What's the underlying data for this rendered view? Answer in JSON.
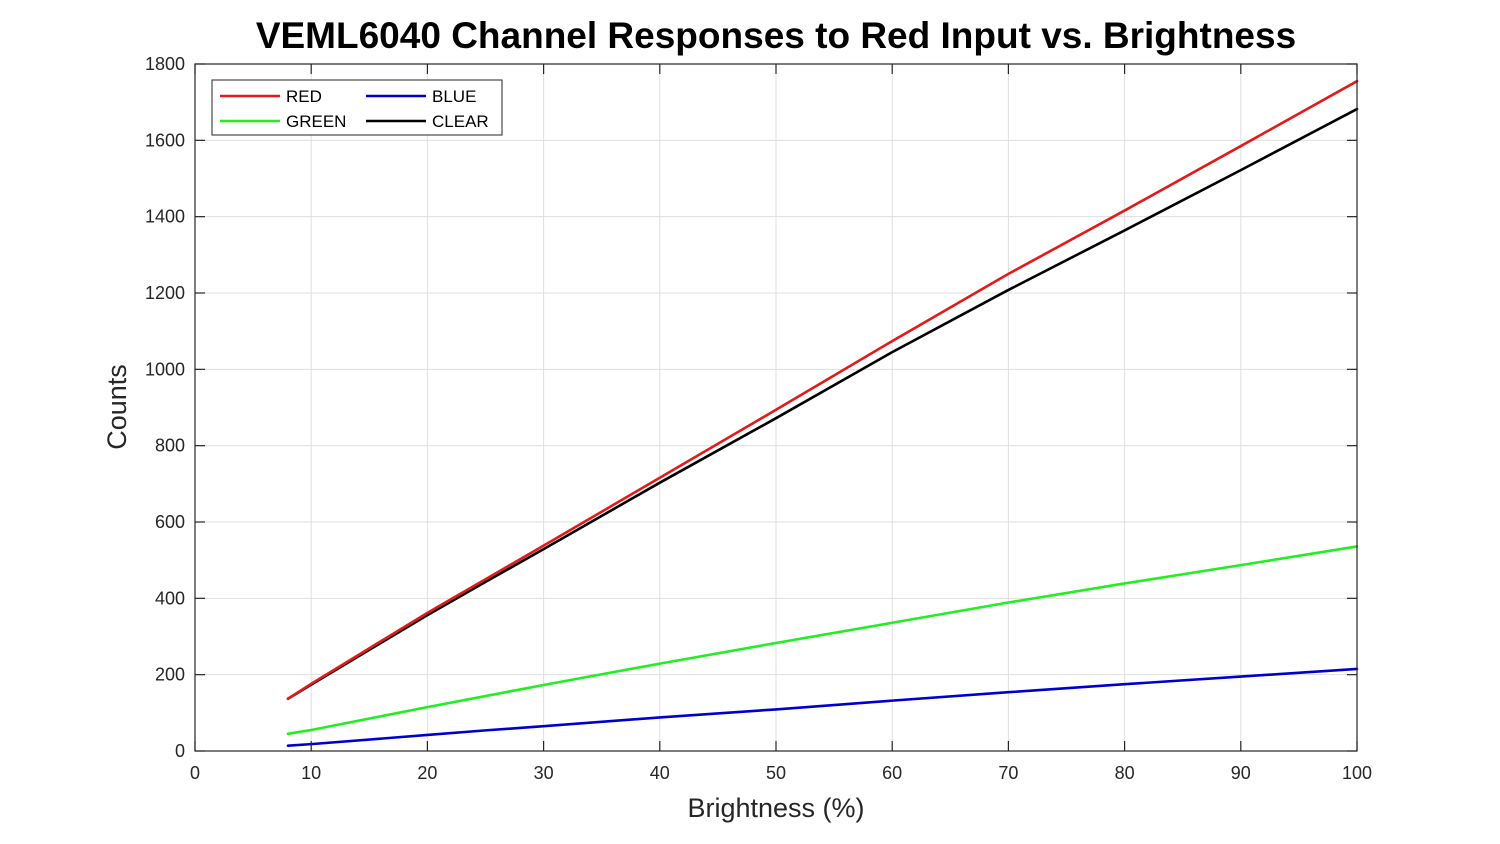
{
  "chart_data": {
    "type": "line",
    "title": "VEML6040 Channel Responses to Red Input vs. Brightness",
    "xlabel": "Brightness (%)",
    "ylabel": "Counts",
    "xlim": [
      0,
      100
    ],
    "ylim": [
      0,
      1800
    ],
    "xticks": [
      "0",
      "10",
      "20",
      "30",
      "40",
      "50",
      "60",
      "70",
      "80",
      "90",
      "100"
    ],
    "yticks": [
      "0",
      "200",
      "400",
      "600",
      "800",
      "1000",
      "1200",
      "1400",
      "1600",
      "1800"
    ],
    "grid": true,
    "legend_position": "top-left",
    "x": [
      8,
      10,
      20,
      25,
      30,
      40,
      50,
      60,
      70,
      80,
      90,
      100
    ],
    "series": [
      {
        "name": "RED",
        "color": "#e31a1c",
        "values": [
          137,
          176,
          362,
          450,
          538,
          716,
          894,
          1074,
          1250,
          1416,
          1585,
          1755
        ]
      },
      {
        "name": "BLUE",
        "color": "#0000cc",
        "values": [
          14,
          18,
          42,
          54,
          65,
          88,
          109,
          132,
          154,
          175,
          195,
          215
        ]
      },
      {
        "name": "GREEN",
        "color": "#22ee22",
        "values": [
          45,
          55,
          115,
          144,
          173,
          229,
          283,
          336,
          389,
          439,
          487,
          536
        ]
      },
      {
        "name": "CLEAR",
        "color": "#000000",
        "values": [
          137,
          174,
          356,
          443,
          529,
          703,
          872,
          1045,
          1208,
          1364,
          1522,
          1682
        ]
      }
    ]
  }
}
